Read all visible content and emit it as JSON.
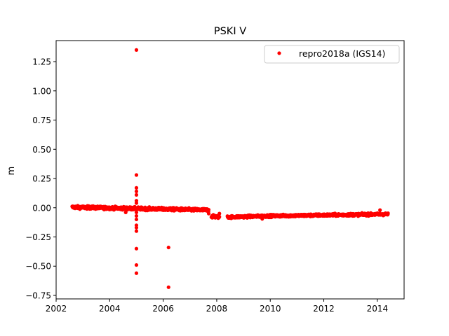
{
  "chart_data": {
    "type": "scatter",
    "title": "PSKI V",
    "xlabel": "",
    "ylabel": "m",
    "xlim": [
      2002.0,
      2015.0
    ],
    "ylim": [
      -0.78,
      1.43
    ],
    "xticks": [
      2002,
      2004,
      2006,
      2008,
      2010,
      2012,
      2014
    ],
    "xtick_labels": [
      "2002",
      "2004",
      "2006",
      "2008",
      "2010",
      "2012",
      "2014"
    ],
    "yticks": [
      -0.75,
      -0.5,
      -0.25,
      0.0,
      0.25,
      0.5,
      0.75,
      1.0,
      1.25
    ],
    "ytick_labels": [
      "−0.75",
      "−0.50",
      "−0.25",
      "0.00",
      "0.25",
      "0.50",
      "0.75",
      "1.00",
      "1.25"
    ],
    "grid": false,
    "legend_position": "top-right",
    "series": [
      {
        "name": "repro2018a (IGS14)",
        "color": "#ff0000",
        "marker": "circle",
        "segments": [
          {
            "x_start": 2002.6,
            "x_end": 2007.7,
            "y_start": 0.005,
            "y_end": -0.02,
            "scatter": 0.012
          },
          {
            "x_start": 2007.8,
            "x_end": 2008.1,
            "y_start": -0.075,
            "y_end": -0.078,
            "scatter": 0.012
          },
          {
            "x_start": 2008.4,
            "x_end": 2010.0,
            "y_start": -0.08,
            "y_end": -0.07,
            "scatter": 0.01
          },
          {
            "x_start": 2010.0,
            "x_end": 2014.4,
            "y_start": -0.07,
            "y_end": -0.055,
            "scatter": 0.01
          }
        ],
        "outliers": [
          {
            "x": 2005.0,
            "y": 1.35
          },
          {
            "x": 2005.0,
            "y": 0.28
          },
          {
            "x": 2005.0,
            "y": 0.17
          },
          {
            "x": 2005.0,
            "y": 0.14
          },
          {
            "x": 2005.0,
            "y": 0.11
          },
          {
            "x": 2005.0,
            "y": 0.06
          },
          {
            "x": 2005.0,
            "y": 0.04
          },
          {
            "x": 2005.0,
            "y": -0.04
          },
          {
            "x": 2005.0,
            "y": -0.07
          },
          {
            "x": 2005.0,
            "y": -0.1
          },
          {
            "x": 2005.0,
            "y": -0.15
          },
          {
            "x": 2005.0,
            "y": -0.17
          },
          {
            "x": 2005.0,
            "y": -0.2
          },
          {
            "x": 2005.0,
            "y": -0.35
          },
          {
            "x": 2005.0,
            "y": -0.49
          },
          {
            "x": 2005.0,
            "y": -0.56
          },
          {
            "x": 2004.6,
            "y": -0.04
          },
          {
            "x": 2006.2,
            "y": -0.34
          },
          {
            "x": 2006.2,
            "y": -0.68
          },
          {
            "x": 2007.7,
            "y": -0.05
          },
          {
            "x": 2008.1,
            "y": -0.05
          },
          {
            "x": 2009.7,
            "y": -0.095
          },
          {
            "x": 2014.1,
            "y": -0.02
          }
        ]
      }
    ]
  }
}
